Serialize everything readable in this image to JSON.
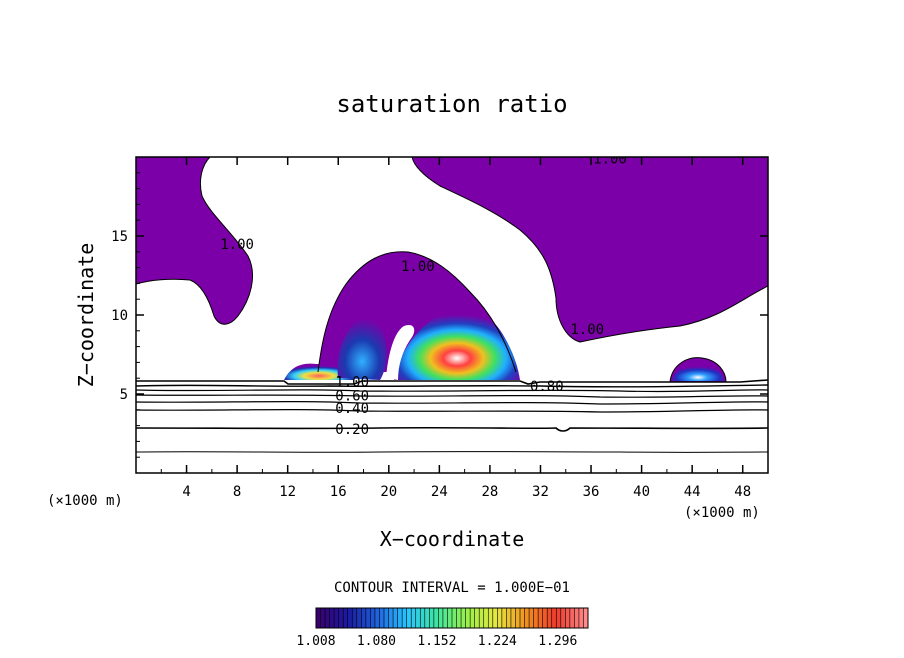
{
  "chart_data": {
    "type": "contour",
    "title": "saturation ratio",
    "xlabel": "X−coordinate",
    "ylabel": "Z−coordinate",
    "x_unit_left": "(×1000 m)",
    "x_unit_right": "(×1000 m)",
    "xlim": [
      0,
      50
    ],
    "ylim": [
      0,
      20
    ],
    "x_ticks": [
      4,
      8,
      12,
      16,
      20,
      24,
      28,
      32,
      36,
      40,
      44,
      48
    ],
    "y_ticks": [
      5,
      10,
      15
    ],
    "contour_interval_label": "CONTOUR INTERVAL = 1.000E−01",
    "contour_labels": [
      {
        "text": "1.00",
        "x": 37.5,
        "y": 19.9
      },
      {
        "text": "1.00",
        "x": 8.0,
        "y": 14.5
      },
      {
        "text": "1.00",
        "x": 22.3,
        "y": 13.1
      },
      {
        "text": "1.00",
        "x": 35.7,
        "y": 9.1
      },
      {
        "text": "1.00",
        "x": 17.1,
        "y": 5.8
      },
      {
        "text": "0.80",
        "x": 32.5,
        "y": 5.5
      },
      {
        "text": "0.60",
        "x": 17.1,
        "y": 4.9
      },
      {
        "text": "0.40",
        "x": 17.1,
        "y": 4.1
      },
      {
        "text": "0.20",
        "x": 17.1,
        "y": 2.8
      }
    ],
    "background_contour_levels": [
      0.2,
      0.4,
      0.6,
      0.8,
      1.0
    ],
    "colorbar": {
      "ticks": [
        "1.008",
        "1.080",
        "1.152",
        "1.224",
        "1.296"
      ],
      "min": 1.008,
      "max": 1.332,
      "colors": [
        "#3a0070",
        "#1a1aa0",
        "#1f64e0",
        "#27c6ff",
        "#3ee6a0",
        "#9af04a",
        "#e6e640",
        "#f09020",
        "#ee3a2c",
        "#ff8a8a"
      ]
    },
    "regions": {
      "supersaturated_fill": "#7c00a8",
      "subsaturated_fill": "#ffffff"
    },
    "grid": false
  }
}
